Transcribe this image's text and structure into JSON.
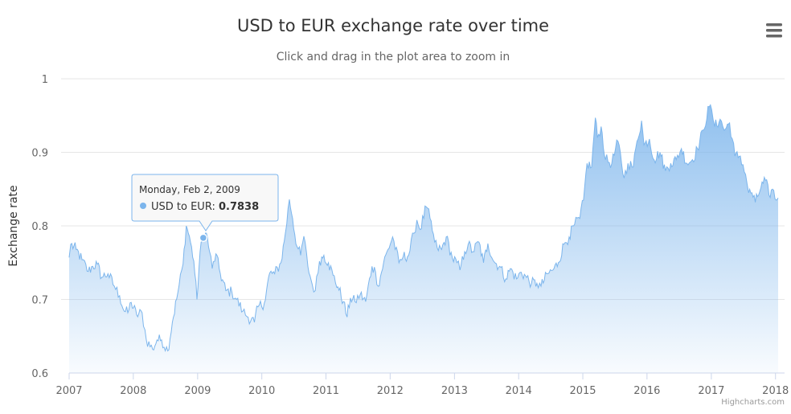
{
  "chart_data": {
    "type": "area",
    "title": "USD to EUR exchange rate over time",
    "subtitle": "Click and drag in the plot area to zoom in",
    "ylabel": "Exchange rate",
    "xlabel": "",
    "ylim": [
      0.6,
      1
    ],
    "xlim": [
      "2007-01-01",
      "2018-01-16"
    ],
    "y_ticks": [
      "0.6",
      "0.7",
      "0.8",
      "0.9",
      "1"
    ],
    "x_ticks": [
      "2007",
      "2008",
      "2009",
      "2010",
      "2011",
      "2012",
      "2013",
      "2014",
      "2015",
      "2016",
      "2017",
      "2018"
    ],
    "grid": true,
    "legend": "none",
    "series": [
      {
        "name": "USD to EUR",
        "color": "#7cb5ec",
        "points": [
          [
            "2007-01-01",
            0.757
          ],
          [
            "2007-01-10",
            0.775
          ],
          [
            "2007-02-10",
            0.768
          ],
          [
            "2007-03-15",
            0.754
          ],
          [
            "2007-04-20",
            0.738
          ],
          [
            "2007-05-15",
            0.745
          ],
          [
            "2007-06-10",
            0.748
          ],
          [
            "2007-07-05",
            0.73
          ],
          [
            "2007-08-10",
            0.735
          ],
          [
            "2007-09-15",
            0.718
          ],
          [
            "2007-10-15",
            0.705
          ],
          [
            "2007-11-10",
            0.684
          ],
          [
            "2007-12-01",
            0.682
          ],
          [
            "2007-12-20",
            0.696
          ],
          [
            "2008-01-20",
            0.679
          ],
          [
            "2008-02-20",
            0.682
          ],
          [
            "2008-03-15",
            0.645
          ],
          [
            "2008-04-20",
            0.632
          ],
          [
            "2008-05-15",
            0.645
          ],
          [
            "2008-06-10",
            0.645
          ],
          [
            "2008-07-15",
            0.63
          ],
          [
            "2008-08-10",
            0.669
          ],
          [
            "2008-09-10",
            0.709
          ],
          [
            "2008-10-10",
            0.748
          ],
          [
            "2008-10-28",
            0.8
          ],
          [
            "2008-11-15",
            0.786
          ],
          [
            "2008-12-10",
            0.752
          ],
          [
            "2008-12-28",
            0.7
          ],
          [
            "2009-01-15",
            0.765
          ],
          [
            "2009-02-02",
            0.7838
          ],
          [
            "2009-02-20",
            0.79
          ],
          [
            "2009-03-10",
            0.765
          ],
          [
            "2009-03-25",
            0.742
          ],
          [
            "2009-04-15",
            0.762
          ],
          [
            "2009-05-10",
            0.735
          ],
          [
            "2009-06-10",
            0.712
          ],
          [
            "2009-07-15",
            0.71
          ],
          [
            "2009-08-10",
            0.7
          ],
          [
            "2009-09-15",
            0.684
          ],
          [
            "2009-10-15",
            0.676
          ],
          [
            "2009-11-20",
            0.669
          ],
          [
            "2009-12-10",
            0.69
          ],
          [
            "2010-01-15",
            0.695
          ],
          [
            "2010-02-15",
            0.736
          ],
          [
            "2010-03-15",
            0.735
          ],
          [
            "2010-04-20",
            0.75
          ],
          [
            "2010-05-15",
            0.79
          ],
          [
            "2010-06-07",
            0.836
          ],
          [
            "2010-06-25",
            0.81
          ],
          [
            "2010-07-20",
            0.772
          ],
          [
            "2010-08-10",
            0.76
          ],
          [
            "2010-08-28",
            0.786
          ],
          [
            "2010-09-20",
            0.745
          ],
          [
            "2010-10-15",
            0.72
          ],
          [
            "2010-11-01",
            0.712
          ],
          [
            "2010-11-25",
            0.752
          ],
          [
            "2010-12-20",
            0.76
          ],
          [
            "2011-01-15",
            0.75
          ],
          [
            "2011-02-10",
            0.733
          ],
          [
            "2011-03-10",
            0.717
          ],
          [
            "2011-04-10",
            0.697
          ],
          [
            "2011-05-01",
            0.676
          ],
          [
            "2011-05-20",
            0.702
          ],
          [
            "2011-06-15",
            0.697
          ],
          [
            "2011-07-15",
            0.707
          ],
          [
            "2011-08-15",
            0.697
          ],
          [
            "2011-09-20",
            0.745
          ],
          [
            "2011-10-10",
            0.737
          ],
          [
            "2011-10-25",
            0.718
          ],
          [
            "2011-11-25",
            0.75
          ],
          [
            "2011-12-20",
            0.768
          ],
          [
            "2012-01-15",
            0.785
          ],
          [
            "2012-02-20",
            0.75
          ],
          [
            "2012-03-15",
            0.758
          ],
          [
            "2012-04-15",
            0.76
          ],
          [
            "2012-05-15",
            0.79
          ],
          [
            "2012-06-01",
            0.808
          ],
          [
            "2012-06-20",
            0.795
          ],
          [
            "2012-07-24",
            0.826
          ],
          [
            "2012-08-15",
            0.81
          ],
          [
            "2012-09-10",
            0.778
          ],
          [
            "2012-09-25",
            0.77
          ],
          [
            "2012-10-20",
            0.768
          ],
          [
            "2012-11-15",
            0.785
          ],
          [
            "2012-12-20",
            0.756
          ],
          [
            "2013-01-15",
            0.75
          ],
          [
            "2013-02-01",
            0.74
          ],
          [
            "2013-02-28",
            0.765
          ],
          [
            "2013-03-20",
            0.775
          ],
          [
            "2013-04-15",
            0.765
          ],
          [
            "2013-05-20",
            0.778
          ],
          [
            "2013-06-15",
            0.75
          ],
          [
            "2013-07-10",
            0.776
          ],
          [
            "2013-08-15",
            0.751
          ],
          [
            "2013-09-15",
            0.745
          ],
          [
            "2013-10-20",
            0.728
          ],
          [
            "2013-11-15",
            0.742
          ],
          [
            "2013-12-20",
            0.728
          ],
          [
            "2014-01-15",
            0.737
          ],
          [
            "2014-02-15",
            0.73
          ],
          [
            "2014-03-15",
            0.722
          ],
          [
            "2014-04-15",
            0.722
          ],
          [
            "2014-05-08",
            0.718
          ],
          [
            "2014-06-15",
            0.735
          ],
          [
            "2014-07-15",
            0.74
          ],
          [
            "2014-08-15",
            0.75
          ],
          [
            "2014-09-15",
            0.775
          ],
          [
            "2014-10-15",
            0.785
          ],
          [
            "2014-11-15",
            0.802
          ],
          [
            "2014-12-15",
            0.81
          ],
          [
            "2015-01-05",
            0.835
          ],
          [
            "2015-01-25",
            0.885
          ],
          [
            "2015-02-20",
            0.88
          ],
          [
            "2015-03-13",
            0.947
          ],
          [
            "2015-03-25",
            0.92
          ],
          [
            "2015-04-15",
            0.935
          ],
          [
            "2015-05-10",
            0.89
          ],
          [
            "2015-06-15",
            0.885
          ],
          [
            "2015-07-20",
            0.915
          ],
          [
            "2015-08-24",
            0.865
          ],
          [
            "2015-09-15",
            0.885
          ],
          [
            "2015-10-15",
            0.88
          ],
          [
            "2015-11-05",
            0.915
          ],
          [
            "2015-12-01",
            0.943
          ],
          [
            "2015-12-15",
            0.91
          ],
          [
            "2016-01-15",
            0.918
          ],
          [
            "2016-02-10",
            0.89
          ],
          [
            "2016-03-15",
            0.9
          ],
          [
            "2016-04-15",
            0.875
          ],
          [
            "2016-05-15",
            0.885
          ],
          [
            "2016-06-15",
            0.89
          ],
          [
            "2016-07-15",
            0.905
          ],
          [
            "2016-08-15",
            0.885
          ],
          [
            "2016-09-15",
            0.89
          ],
          [
            "2016-10-15",
            0.905
          ],
          [
            "2016-11-15",
            0.93
          ],
          [
            "2016-12-20",
            0.962
          ],
          [
            "2017-01-03",
            0.958
          ],
          [
            "2017-01-20",
            0.935
          ],
          [
            "2017-02-20",
            0.945
          ],
          [
            "2017-03-15",
            0.93
          ],
          [
            "2017-04-15",
            0.94
          ],
          [
            "2017-05-15",
            0.895
          ],
          [
            "2017-06-15",
            0.895
          ],
          [
            "2017-07-15",
            0.87
          ],
          [
            "2017-08-01",
            0.845
          ],
          [
            "2017-08-20",
            0.845
          ],
          [
            "2017-09-08",
            0.832
          ],
          [
            "2017-10-10",
            0.852
          ],
          [
            "2017-11-05",
            0.862
          ],
          [
            "2017-11-25",
            0.842
          ],
          [
            "2017-12-15",
            0.85
          ],
          [
            "2018-01-05",
            0.835
          ],
          [
            "2018-01-16",
            0.838
          ]
        ]
      }
    ],
    "tooltip": {
      "date": "Monday, Feb 2, 2009",
      "series": "USD to EUR",
      "value": "0.7838",
      "at_x": "2009-02-02",
      "at_y": 0.7838
    }
  },
  "credits": "Highcharts.com",
  "menu_icon": "hamburger-menu-icon"
}
